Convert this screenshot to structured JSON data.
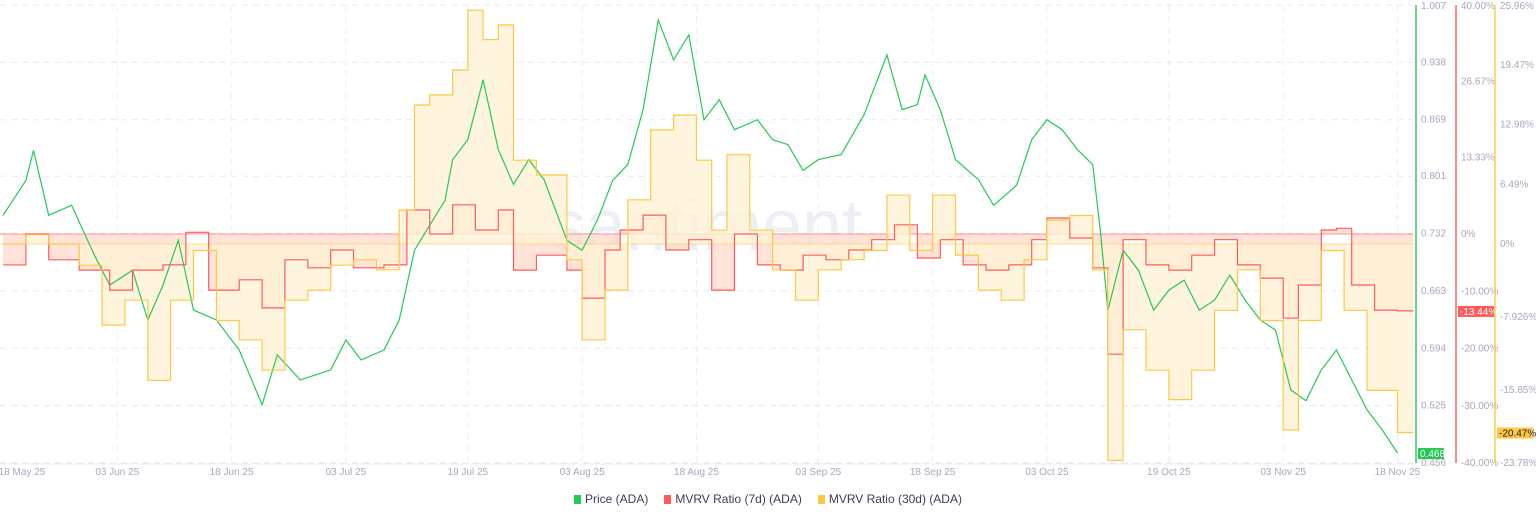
{
  "watermark": "santiment",
  "legend": [
    {
      "label": "Price (ADA)",
      "color": "#26c953"
    },
    {
      "label": "MVRV Ratio (7d) (ADA)",
      "color": "#ff5b5b"
    },
    {
      "label": "MVRV Ratio (30d) (ADA)",
      "color": "#ffc843"
    }
  ],
  "chart_data": {
    "type": "line",
    "x_ticks": [
      {
        "date": "2025-05-18",
        "label": "18 May 25"
      },
      {
        "date": "2025-06-03",
        "label": "03 Jun 25"
      },
      {
        "date": "2025-06-18",
        "label": "18 Jun 25"
      },
      {
        "date": "2025-07-03",
        "label": "03 Jul 25"
      },
      {
        "date": "2025-07-19",
        "label": "19 Jul 25"
      },
      {
        "date": "2025-08-03",
        "label": "03 Aug 25"
      },
      {
        "date": "2025-08-18",
        "label": "18 Aug 25"
      },
      {
        "date": "2025-09-03",
        "label": "03 Sep 25"
      },
      {
        "date": "2025-09-18",
        "label": "18 Sep 25"
      },
      {
        "date": "2025-10-03",
        "label": "03 Oct 25"
      },
      {
        "date": "2025-10-19",
        "label": "19 Oct 25"
      },
      {
        "date": "2025-11-03",
        "label": "03 Nov 25"
      },
      {
        "date": "2025-11-18",
        "label": "18 Nov 25"
      }
    ],
    "axes": {
      "price": {
        "range": [
          0.456,
          1.007
        ],
        "ticks": [
          "1.007",
          "0.938",
          "0.869",
          "0.801",
          "0.732",
          "0.663",
          "0.594",
          "0.525",
          "0.456"
        ],
        "current": "0.468"
      },
      "mvrv7d": {
        "range": [
          -40,
          40
        ],
        "ticks": [
          "40.00%",
          "26.67%",
          "13.33%",
          "0%",
          "-10.00%",
          "-20.00%",
          "-30.00%",
          "-40.00%"
        ],
        "tick_values": [
          40,
          26.67,
          13.33,
          0,
          -10,
          -20,
          -30,
          -40
        ],
        "current": "-13.44%"
      },
      "mvrv30d": {
        "range": [
          -23.78,
          25.96
        ],
        "ticks": [
          "25.96%",
          "19.47%",
          "12.98%",
          "6.49%",
          "0%",
          "-7.926%",
          "-15.85%",
          "-23.78%"
        ],
        "tick_values": [
          25.96,
          19.47,
          12.98,
          6.49,
          0,
          -7.926,
          -15.85,
          -23.78
        ],
        "current": "-20.47%"
      }
    },
    "grid": true,
    "legend_position": "bottom",
    "series": [
      {
        "name": "Price (ADA)",
        "axis": "price",
        "color": "#26c953",
        "points": [
          [
            "2025-05-19",
            0.754
          ],
          [
            "2025-05-22",
            0.796
          ],
          [
            "2025-05-23",
            0.832
          ],
          [
            "2025-05-25",
            0.754
          ],
          [
            "2025-05-28",
            0.766
          ],
          [
            "2025-05-31",
            0.706
          ],
          [
            "2025-06-02",
            0.67
          ],
          [
            "2025-06-05",
            0.688
          ],
          [
            "2025-06-07",
            0.628
          ],
          [
            "2025-06-09",
            0.67
          ],
          [
            "2025-06-11",
            0.724
          ],
          [
            "2025-06-13",
            0.64
          ],
          [
            "2025-06-16",
            0.628
          ],
          [
            "2025-06-19",
            0.592
          ],
          [
            "2025-06-22",
            0.526
          ],
          [
            "2025-06-24",
            0.586
          ],
          [
            "2025-06-27",
            0.556
          ],
          [
            "2025-07-01",
            0.568
          ],
          [
            "2025-07-03",
            0.604
          ],
          [
            "2025-07-05",
            0.58
          ],
          [
            "2025-07-08",
            0.592
          ],
          [
            "2025-07-10",
            0.628
          ],
          [
            "2025-07-12",
            0.712
          ],
          [
            "2025-07-14",
            0.742
          ],
          [
            "2025-07-16",
            0.772
          ],
          [
            "2025-07-17",
            0.821
          ],
          [
            "2025-07-19",
            0.845
          ],
          [
            "2025-07-21",
            0.917
          ],
          [
            "2025-07-23",
            0.833
          ],
          [
            "2025-07-25",
            0.791
          ],
          [
            "2025-07-27",
            0.821
          ],
          [
            "2025-07-29",
            0.797
          ],
          [
            "2025-08-01",
            0.724
          ],
          [
            "2025-08-03",
            0.712
          ],
          [
            "2025-08-05",
            0.748
          ],
          [
            "2025-08-07",
            0.796
          ],
          [
            "2025-08-09",
            0.815
          ],
          [
            "2025-08-11",
            0.881
          ],
          [
            "2025-08-13",
            0.989
          ],
          [
            "2025-08-15",
            0.941
          ],
          [
            "2025-08-17",
            0.971
          ],
          [
            "2025-08-19",
            0.869
          ],
          [
            "2025-08-21",
            0.893
          ],
          [
            "2025-08-23",
            0.857
          ],
          [
            "2025-08-26",
            0.869
          ],
          [
            "2025-08-28",
            0.845
          ],
          [
            "2025-08-30",
            0.839
          ],
          [
            "2025-09-01",
            0.808
          ],
          [
            "2025-09-03",
            0.821
          ],
          [
            "2025-09-06",
            0.827
          ],
          [
            "2025-09-09",
            0.875
          ],
          [
            "2025-09-12",
            0.947
          ],
          [
            "2025-09-14",
            0.881
          ],
          [
            "2025-09-16",
            0.887
          ],
          [
            "2025-09-17",
            0.923
          ],
          [
            "2025-09-19",
            0.881
          ],
          [
            "2025-09-21",
            0.821
          ],
          [
            "2025-09-24",
            0.797
          ],
          [
            "2025-09-26",
            0.766
          ],
          [
            "2025-09-29",
            0.79
          ],
          [
            "2025-10-01",
            0.845
          ],
          [
            "2025-10-03",
            0.869
          ],
          [
            "2025-10-05",
            0.857
          ],
          [
            "2025-10-07",
            0.833
          ],
          [
            "2025-10-09",
            0.815
          ],
          [
            "2025-10-10",
            0.736
          ],
          [
            "2025-10-11",
            0.64
          ],
          [
            "2025-10-13",
            0.712
          ],
          [
            "2025-10-15",
            0.688
          ],
          [
            "2025-10-17",
            0.64
          ],
          [
            "2025-10-19",
            0.664
          ],
          [
            "2025-10-21",
            0.676
          ],
          [
            "2025-10-23",
            0.64
          ],
          [
            "2025-10-25",
            0.652
          ],
          [
            "2025-10-27",
            0.682
          ],
          [
            "2025-10-29",
            0.652
          ],
          [
            "2025-10-31",
            0.628
          ],
          [
            "2025-11-02",
            0.616
          ],
          [
            "2025-11-04",
            0.544
          ],
          [
            "2025-11-06",
            0.531
          ],
          [
            "2025-11-08",
            0.568
          ],
          [
            "2025-11-10",
            0.592
          ],
          [
            "2025-11-12",
            0.556
          ],
          [
            "2025-11-14",
            0.52
          ],
          [
            "2025-11-16",
            0.496
          ],
          [
            "2025-11-18",
            0.468
          ]
        ]
      },
      {
        "name": "MVRV Ratio (7d) (ADA)",
        "axis": "mvrv7d",
        "color": "#ff5b5b",
        "fill": "#ffd9cc",
        "points": [
          [
            "2025-05-19",
            -5.4
          ],
          [
            "2025-05-22",
            0
          ],
          [
            "2025-05-25",
            -4.5
          ],
          [
            "2025-05-29",
            -6.3
          ],
          [
            "2025-06-02",
            -9.8
          ],
          [
            "2025-06-05",
            -6.3
          ],
          [
            "2025-06-09",
            -5.4
          ],
          [
            "2025-06-12",
            0.3
          ],
          [
            "2025-06-15",
            -9.8
          ],
          [
            "2025-06-19",
            -8
          ],
          [
            "2025-06-22",
            -12.9
          ],
          [
            "2025-06-25",
            -4.5
          ],
          [
            "2025-06-28",
            -5.9
          ],
          [
            "2025-07-01",
            -2.8
          ],
          [
            "2025-07-04",
            -5.9
          ],
          [
            "2025-07-08",
            -5.4
          ],
          [
            "2025-07-11",
            4.2
          ],
          [
            "2025-07-14",
            0
          ],
          [
            "2025-07-17",
            5.1
          ],
          [
            "2025-07-20",
            0.7
          ],
          [
            "2025-07-23",
            4.2
          ],
          [
            "2025-07-25",
            -6.3
          ],
          [
            "2025-07-28",
            -3.7
          ],
          [
            "2025-08-01",
            -6.3
          ],
          [
            "2025-08-03",
            -11.2
          ],
          [
            "2025-08-06",
            -2.8
          ],
          [
            "2025-08-08",
            0.7
          ],
          [
            "2025-08-11",
            3.3
          ],
          [
            "2025-08-14",
            -2.8
          ],
          [
            "2025-08-17",
            -1
          ],
          [
            "2025-08-20",
            -9.8
          ],
          [
            "2025-08-23",
            0
          ],
          [
            "2025-08-26",
            -5.4
          ],
          [
            "2025-08-29",
            -6.3
          ],
          [
            "2025-09-01",
            -3.7
          ],
          [
            "2025-09-04",
            -4.5
          ],
          [
            "2025-09-07",
            -2.8
          ],
          [
            "2025-09-10",
            -1
          ],
          [
            "2025-09-13",
            1.6
          ],
          [
            "2025-09-16",
            -4.2
          ],
          [
            "2025-09-19",
            -1
          ],
          [
            "2025-09-22",
            -5.4
          ],
          [
            "2025-09-25",
            -6.3
          ],
          [
            "2025-09-28",
            -5.4
          ],
          [
            "2025-10-01",
            -1
          ],
          [
            "2025-10-03",
            2.8
          ],
          [
            "2025-10-06",
            -0.7
          ],
          [
            "2025-10-09",
            -5.9
          ],
          [
            "2025-10-11",
            -21
          ],
          [
            "2025-10-13",
            -1
          ],
          [
            "2025-10-16",
            -5.4
          ],
          [
            "2025-10-19",
            -6.3
          ],
          [
            "2025-10-22",
            -3.7
          ],
          [
            "2025-10-25",
            -1
          ],
          [
            "2025-10-28",
            -5.4
          ],
          [
            "2025-10-31",
            -7.7
          ],
          [
            "2025-11-03",
            -14.7
          ],
          [
            "2025-11-05",
            -8.9
          ],
          [
            "2025-11-08",
            0.7
          ],
          [
            "2025-11-10",
            1
          ],
          [
            "2025-11-12",
            -8.9
          ],
          [
            "2025-11-15",
            -13.3
          ],
          [
            "2025-11-18",
            -13.44
          ]
        ]
      },
      {
        "name": "MVRV Ratio (30d) (ADA)",
        "axis": "mvrv30d",
        "color": "#ffc843",
        "fill": "#fff1d4",
        "points": [
          [
            "2025-05-19",
            0
          ],
          [
            "2025-05-22",
            1
          ],
          [
            "2025-05-25",
            0
          ],
          [
            "2025-05-29",
            -2.3
          ],
          [
            "2025-06-01",
            -8.8
          ],
          [
            "2025-06-04",
            -6.1
          ],
          [
            "2025-06-07",
            -14.8
          ],
          [
            "2025-06-10",
            -6.1
          ],
          [
            "2025-06-13",
            -0.7
          ],
          [
            "2025-06-16",
            -8.3
          ],
          [
            "2025-06-19",
            -10.4
          ],
          [
            "2025-06-22",
            -13.7
          ],
          [
            "2025-06-25",
            -6.1
          ],
          [
            "2025-06-28",
            -5
          ],
          [
            "2025-07-01",
            -2.3
          ],
          [
            "2025-07-04",
            -1.7
          ],
          [
            "2025-07-07",
            -2.8
          ],
          [
            "2025-07-10",
            3.7
          ],
          [
            "2025-07-12",
            15.1
          ],
          [
            "2025-07-14",
            16.2
          ],
          [
            "2025-07-17",
            18.9
          ],
          [
            "2025-07-19",
            25.4
          ],
          [
            "2025-07-21",
            22.2
          ],
          [
            "2025-07-23",
            23.8
          ],
          [
            "2025-07-25",
            9.1
          ],
          [
            "2025-07-28",
            7.5
          ],
          [
            "2025-08-01",
            -1.7
          ],
          [
            "2025-08-03",
            -10.4
          ],
          [
            "2025-08-06",
            -5
          ],
          [
            "2025-08-09",
            4.8
          ],
          [
            "2025-08-12",
            12.4
          ],
          [
            "2025-08-15",
            14
          ],
          [
            "2025-08-18",
            9.1
          ],
          [
            "2025-08-20",
            1.5
          ],
          [
            "2025-08-22",
            9.7
          ],
          [
            "2025-08-25",
            1.5
          ],
          [
            "2025-08-28",
            -2.8
          ],
          [
            "2025-08-31",
            -6.1
          ],
          [
            "2025-09-03",
            -2.8
          ],
          [
            "2025-09-06",
            -1.7
          ],
          [
            "2025-09-09",
            -0.7
          ],
          [
            "2025-09-12",
            5.3
          ],
          [
            "2025-09-15",
            -0.7
          ],
          [
            "2025-09-18",
            5.3
          ],
          [
            "2025-09-21",
            -1.2
          ],
          [
            "2025-09-24",
            -5
          ],
          [
            "2025-09-27",
            -6.1
          ],
          [
            "2025-09-30",
            -1.7
          ],
          [
            "2025-10-03",
            2.6
          ],
          [
            "2025-10-06",
            3.1
          ],
          [
            "2025-10-09",
            -2.8
          ],
          [
            "2025-10-11",
            -23.5
          ],
          [
            "2025-10-13",
            -9.3
          ],
          [
            "2025-10-16",
            -13.7
          ],
          [
            "2025-10-19",
            -16.9
          ],
          [
            "2025-10-22",
            -13.7
          ],
          [
            "2025-10-25",
            -7.2
          ],
          [
            "2025-10-28",
            -2.8
          ],
          [
            "2025-10-31",
            -8.3
          ],
          [
            "2025-11-03",
            -20.2
          ],
          [
            "2025-11-05",
            -8.3
          ],
          [
            "2025-11-08",
            -0.7
          ],
          [
            "2025-11-11",
            -7.2
          ],
          [
            "2025-11-14",
            -15.9
          ],
          [
            "2025-11-18",
            -20.47
          ]
        ]
      }
    ]
  }
}
